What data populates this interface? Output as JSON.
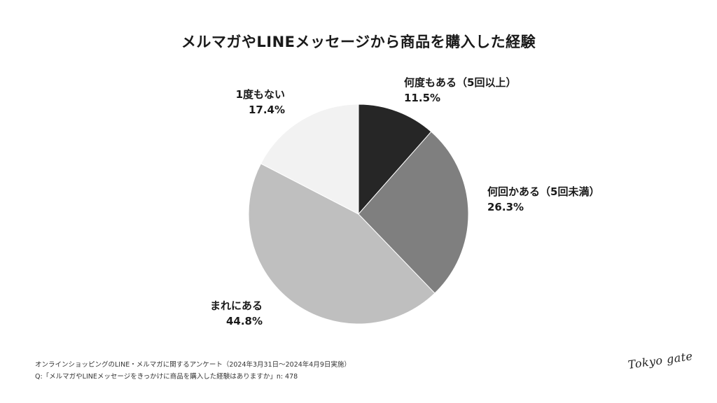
{
  "chart_data": {
    "type": "pie",
    "title": "メルマガやLINEメッセージから商品を購入した経験",
    "categories": [
      "何度もある（5回以上）",
      "何回かある（5回未満）",
      "まれにある",
      "1度もない"
    ],
    "values": [
      11.5,
      26.3,
      44.8,
      17.4
    ],
    "value_labels": [
      "11.5%",
      "26.3%",
      "44.8%",
      "17.4%"
    ],
    "colors": [
      "#262626",
      "#7f7f7f",
      "#bfbfbf",
      "#f2f2f2"
    ],
    "start_angle": "12 o'clock",
    "direction": "clockwise",
    "legend": "none"
  },
  "footer": {
    "line1": "オンラインショッピングのLINE・メルマガに関するアンケート（2024年3月31日〜2024年4月9日実施）",
    "line2": "Q:「メルマガやLINEメッセージをきっかけに商品を購入した経験はありますか」n: 478"
  },
  "logo": {
    "text": "Tokyo gate"
  }
}
